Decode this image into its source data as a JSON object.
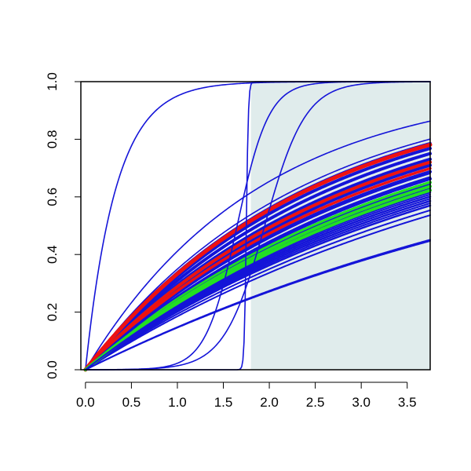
{
  "chart_data": {
    "type": "line",
    "title": "",
    "xlabel": "",
    "ylabel": "",
    "xlim": [
      -0.05,
      3.75
    ],
    "ylim": [
      0,
      1
    ],
    "grid": false,
    "legend": "none",
    "x_ticks": [
      "0.0",
      "0.5",
      "1.0",
      "1.5",
      "2.0",
      "2.5",
      "3.0",
      "3.5"
    ],
    "y_ticks": [
      "0.0",
      "0.2",
      "0.4",
      "0.6",
      "0.8",
      "1.0"
    ],
    "shaded_region": {
      "x_start": 1.8,
      "x_end": 3.75,
      "color": "#e0ecec"
    },
    "colors": {
      "blue": "#1414d8",
      "green": "#22e022",
      "red": "#ee1111",
      "axis": "#000000"
    },
    "series": [
      {
        "kind": "exp",
        "rate": 3.0,
        "color": "blue",
        "width": 1.6
      },
      {
        "kind": "exp",
        "rate": 0.53,
        "color": "blue",
        "width": 1.6
      },
      {
        "kind": "exp",
        "rate": 0.43,
        "color": "blue",
        "width": 1.6
      },
      {
        "kind": "exp",
        "rate": 0.41,
        "color": "blue",
        "width": 4
      },
      {
        "kind": "exp",
        "rate": 0.39,
        "color": "blue",
        "width": 4
      },
      {
        "kind": "exp",
        "rate": 0.37,
        "color": "blue",
        "width": 4
      },
      {
        "kind": "exp",
        "rate": 0.35,
        "color": "blue",
        "width": 4
      },
      {
        "kind": "exp",
        "rate": 0.33,
        "color": "blue",
        "width": 4
      },
      {
        "kind": "exp",
        "rate": 0.31,
        "color": "blue",
        "width": 4
      },
      {
        "kind": "exp",
        "rate": 0.29,
        "color": "blue",
        "width": 4
      },
      {
        "kind": "exp",
        "rate": 0.34,
        "color": "green",
        "width": 4
      },
      {
        "kind": "exp",
        "rate": 0.28,
        "color": "green",
        "width": 4
      },
      {
        "kind": "exp",
        "rate": 0.405,
        "color": "red",
        "width": 5
      },
      {
        "kind": "exp",
        "rate": 0.34,
        "color": "red",
        "width": 4
      },
      {
        "kind": "exp",
        "rate": 0.32,
        "color": "red",
        "width": 3.5
      },
      {
        "kind": "exp",
        "rate": 0.305,
        "color": "blue",
        "width": 2
      },
      {
        "kind": "exp",
        "rate": 0.295,
        "color": "blue",
        "width": 2
      },
      {
        "kind": "exp",
        "rate": 0.275,
        "color": "blue",
        "width": 2
      },
      {
        "kind": "exp",
        "rate": 0.265,
        "color": "blue",
        "width": 2.5
      },
      {
        "kind": "exp",
        "rate": 0.255,
        "color": "blue",
        "width": 2.5
      },
      {
        "kind": "exp",
        "rate": 0.245,
        "color": "blue",
        "width": 2.5
      },
      {
        "kind": "exp",
        "rate": 0.235,
        "color": "blue",
        "width": 2.5
      },
      {
        "kind": "exp",
        "rate": 0.225,
        "color": "blue",
        "width": 2.5
      },
      {
        "kind": "exp",
        "rate": 0.205,
        "color": "blue",
        "width": 2
      },
      {
        "kind": "exp",
        "rate": 0.24,
        "color": "blue",
        "width": 2
      },
      {
        "kind": "exp",
        "rate": 0.23,
        "color": "blue",
        "width": 2
      },
      {
        "kind": "exp",
        "rate": 0.24,
        "color": "blue",
        "width": 1.6
      },
      {
        "kind": "exp",
        "rate": 0.215,
        "color": "blue",
        "width": 2
      },
      {
        "kind": "exp",
        "rate": 0.27,
        "color": "green",
        "width": 4
      },
      {
        "kind": "exp",
        "rate": 0.26,
        "color": "green",
        "width": 4
      },
      {
        "kind": "exp",
        "rate": 0.25,
        "color": "blue",
        "width": 2
      },
      {
        "kind": "exp",
        "rate": 0.16,
        "color": "blue",
        "width": 2
      },
      {
        "kind": "exp",
        "rate": 0.158,
        "color": "blue",
        "width": 2
      },
      {
        "kind": "logistic",
        "k": 90,
        "x0": 1.75,
        "color": "blue",
        "width": 1.6
      },
      {
        "kind": "logistic",
        "k": 5.8,
        "x0": 1.65,
        "color": "blue",
        "width": 1.6
      },
      {
        "kind": "logistic",
        "k": 4.5,
        "x0": 1.95,
        "color": "blue",
        "width": 1.6
      }
    ]
  }
}
